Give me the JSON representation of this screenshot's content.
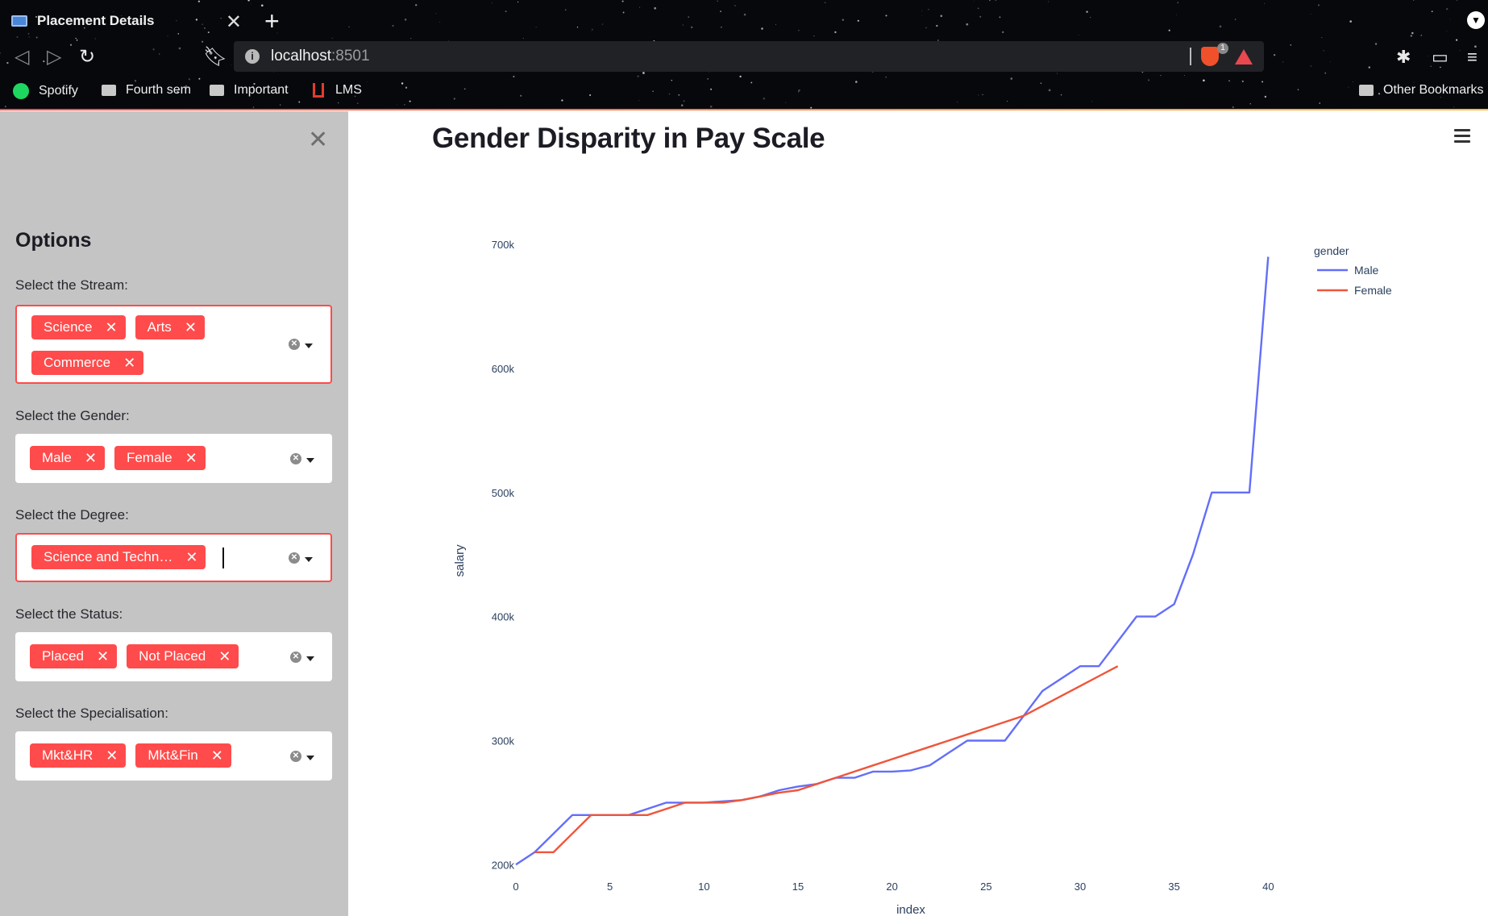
{
  "browser": {
    "tab_title": "Placement Details",
    "tab_close": "✕",
    "new_tab": "+",
    "url_host": "localhost",
    "url_port": ":8501",
    "brave_count": "1",
    "bookmarks": [
      {
        "label": "Spotify",
        "icon": "spotify-icon"
      },
      {
        "label": "Fourth sem",
        "icon": "folder-icon"
      },
      {
        "label": "Important",
        "icon": "folder-icon"
      },
      {
        "label": "LMS",
        "icon": "lms-icon"
      }
    ],
    "other_bookmarks": "Other Bookmarks"
  },
  "sidebar": {
    "close": "✕",
    "title": "Options",
    "filters": [
      {
        "label": "Select the Stream:",
        "tags": [
          "Science",
          "Arts",
          "Commerce"
        ],
        "focused": true
      },
      {
        "label": "Select the Gender:",
        "tags": [
          "Male",
          "Female"
        ],
        "focused": false
      },
      {
        "label": "Select the Degree:",
        "tags": [
          "Science and Techn…"
        ],
        "focused": true
      },
      {
        "label": "Select the Status:",
        "tags": [
          "Placed",
          "Not Placed"
        ],
        "focused": false
      },
      {
        "label": "Select the Specialisation:",
        "tags": [
          "Mkt&HR",
          "Mkt&Fin"
        ],
        "focused": false
      }
    ],
    "tag_remove": "✕"
  },
  "main": {
    "title": "Gender Disparity in Pay Scale"
  },
  "colors": {
    "accent": "#ff4b4b",
    "male_line": "#636efa",
    "female_line": "#ef553b"
  },
  "chart_data": {
    "type": "line",
    "xlabel": "index",
    "ylabel": "salary",
    "legend_title": "gender",
    "legend_position": "top-right",
    "xlim": [
      0,
      42
    ],
    "ylim": [
      195000,
      715000
    ],
    "x_ticks": [
      0,
      5,
      10,
      15,
      20,
      25,
      30,
      35,
      40
    ],
    "y_ticks": [
      {
        "value": 200000,
        "label": "200k"
      },
      {
        "value": 300000,
        "label": "300k"
      },
      {
        "value": 400000,
        "label": "400k"
      },
      {
        "value": 500000,
        "label": "500k"
      },
      {
        "value": 600000,
        "label": "600k"
      },
      {
        "value": 700000,
        "label": "700k"
      }
    ],
    "grid": false,
    "series": [
      {
        "name": "Male",
        "color": "#636efa",
        "x": [
          0,
          1,
          2,
          3,
          4,
          5,
          6,
          7,
          8,
          9,
          10,
          11,
          12,
          13,
          14,
          15,
          16,
          17,
          18,
          19,
          20,
          21,
          22,
          23,
          24,
          25,
          26,
          27,
          28,
          29,
          30,
          31,
          32,
          33,
          34,
          35,
          36,
          37,
          38,
          39,
          40
        ],
        "y": [
          200000,
          210000,
          225000,
          240000,
          240000,
          240000,
          240000,
          245000,
          250000,
          250000,
          250000,
          251000,
          252000,
          255000,
          260000,
          263000,
          265000,
          270000,
          270000,
          275000,
          275000,
          276000,
          280000,
          290000,
          300000,
          300000,
          300000,
          320000,
          340000,
          350000,
          360000,
          360000,
          380000,
          400000,
          400000,
          410000,
          450000,
          500000,
          500000,
          500000,
          690000
        ]
      },
      {
        "name": "Female",
        "color": "#ef553b",
        "x": [
          1,
          2,
          3,
          4,
          5,
          6,
          7,
          8,
          9,
          10,
          11,
          12,
          13,
          14,
          15,
          16,
          17,
          18,
          19,
          20,
          21,
          22,
          23,
          24,
          25,
          26,
          27,
          28,
          29,
          30,
          31,
          32
        ],
        "y": [
          210000,
          210000,
          225000,
          240000,
          240000,
          240000,
          240000,
          245000,
          250000,
          250000,
          250000,
          252000,
          255000,
          258000,
          260000,
          265000,
          270000,
          275000,
          280000,
          285000,
          290000,
          295000,
          300000,
          305000,
          310000,
          315000,
          320000,
          328000,
          336000,
          344000,
          352000,
          360000
        ]
      }
    ]
  }
}
